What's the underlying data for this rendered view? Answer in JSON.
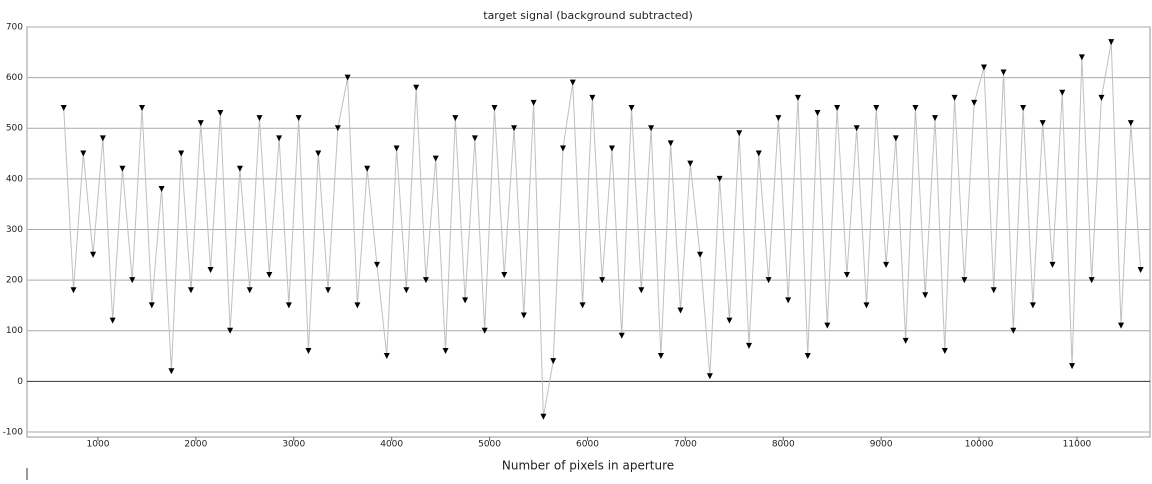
{
  "chart_data": {
    "type": "line",
    "title": "target signal (background subtracted)",
    "x_label": "Number of pixels in aperture",
    "x": [
      650,
      750,
      850,
      950,
      1050,
      1150,
      1250,
      1350,
      1450,
      1550,
      1650,
      1750,
      1850,
      1950,
      2050,
      2150,
      2250,
      2350,
      2450,
      2550,
      2650,
      2750,
      2850,
      2950,
      3050,
      3150,
      3250,
      3350,
      3450,
      3550,
      3650,
      3750,
      3850,
      3950,
      4050,
      4150,
      4250,
      4350,
      4450,
      4550,
      4650,
      4750,
      4850,
      4950,
      5050,
      5150,
      5250,
      5350,
      5450,
      5550,
      5650,
      5750,
      5850,
      5950,
      6050,
      6150,
      6250,
      6350,
      6450,
      6550,
      6650,
      6750,
      6850,
      6950,
      7050,
      7150,
      7250,
      7350,
      7450,
      7550,
      7650,
      7750,
      7850,
      7950,
      8050,
      8150,
      8250,
      8350,
      8450,
      8550,
      8650,
      8750,
      8850,
      8950,
      9050,
      9150,
      9250,
      9350,
      9450,
      9550,
      9650,
      9750,
      9850,
      9950,
      10050,
      10150,
      10250,
      10350,
      10450,
      10550,
      10650,
      10750,
      10850,
      10950,
      11050,
      11150,
      11250,
      11350,
      11450,
      11550,
      11650
    ],
    "series": [
      {
        "color": "#000000",
        "line_color": "#c0c0c0",
        "values": [
          540,
          180,
          450,
          250,
          480,
          120,
          420,
          200,
          540,
          150,
          380,
          20,
          450,
          180,
          510,
          220,
          530,
          100,
          420,
          180,
          520,
          210,
          480,
          150,
          520,
          60,
          450,
          180,
          500,
          600,
          150,
          420,
          230,
          50,
          460,
          180,
          580,
          200,
          440,
          60,
          520,
          160,
          480,
          100,
          540,
          210,
          500,
          130,
          550,
          -70,
          40,
          460,
          590,
          150,
          560,
          200,
          460,
          90,
          540,
          180,
          500,
          50,
          470,
          140,
          430,
          250,
          10,
          400,
          120,
          490,
          70,
          450,
          200,
          520,
          160,
          560,
          50,
          530,
          110,
          540,
          210,
          500,
          150,
          540,
          230,
          480,
          80,
          540,
          170,
          520,
          60,
          560,
          200,
          550,
          620,
          180,
          610,
          100,
          540,
          150,
          510,
          230,
          570,
          30,
          640,
          200,
          560,
          670,
          110,
          510,
          220
        ]
      }
    ],
    "xlim": [
      275,
      11746
    ],
    "ylim": [
      -110,
      700
    ],
    "xticks": [
      1000,
      2000,
      3000,
      4000,
      5000,
      6000,
      7000,
      8000,
      9000,
      10000,
      11000
    ],
    "yticks": [
      -100,
      0,
      100,
      200,
      300,
      400,
      500,
      600,
      700
    ],
    "grid": true
  }
}
